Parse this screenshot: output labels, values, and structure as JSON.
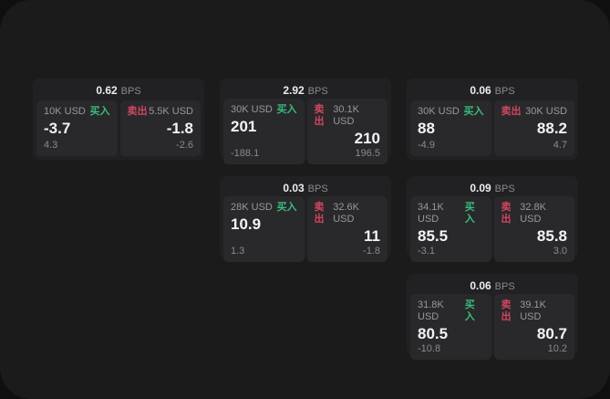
{
  "labels": {
    "bps": "BPS",
    "buy": "买入",
    "sell": "卖出"
  },
  "colors": {
    "background": "#0f0f10",
    "window": "#1b1b1c",
    "card": "#212123",
    "panel": "#29292b",
    "buy_green": "#36bd7d",
    "sell_red": "#d4455f",
    "text_primary": "#f4f4f5",
    "text_muted": "#98989c"
  },
  "cards": [
    {
      "spread": "0.62",
      "buy": {
        "amount": "10K USD",
        "price": "-3.7",
        "delta": "4.3"
      },
      "sell": {
        "amount": "5.5K USD",
        "price": "-1.8",
        "delta": "-2.6"
      }
    },
    {
      "spread": "2.92",
      "buy": {
        "amount": "30K USD",
        "price": "201",
        "delta": "-188.1"
      },
      "sell": {
        "amount": "30.1K USD",
        "price": "210",
        "delta": "196.5"
      }
    },
    {
      "spread": "0.06",
      "buy": {
        "amount": "30K USD",
        "price": "88",
        "delta": "-4.9"
      },
      "sell": {
        "amount": "30K USD",
        "price": "88.2",
        "delta": "4.7"
      }
    },
    {
      "spread": "0.03",
      "buy": {
        "amount": "28K USD",
        "price": "10.9",
        "delta": "1.3"
      },
      "sell": {
        "amount": "32.6K USD",
        "price": "11",
        "delta": "-1.8"
      }
    },
    {
      "spread": "0.09",
      "buy": {
        "amount": "34.1K USD",
        "price": "85.5",
        "delta": "-3.1"
      },
      "sell": {
        "amount": "32.8K USD",
        "price": "85.8",
        "delta": "3.0"
      }
    },
    {
      "spread": "0.06",
      "buy": {
        "amount": "31.8K USD",
        "price": "80.5",
        "delta": "-10.8"
      },
      "sell": {
        "amount": "39.1K USD",
        "price": "80.7",
        "delta": "10.2"
      }
    }
  ]
}
